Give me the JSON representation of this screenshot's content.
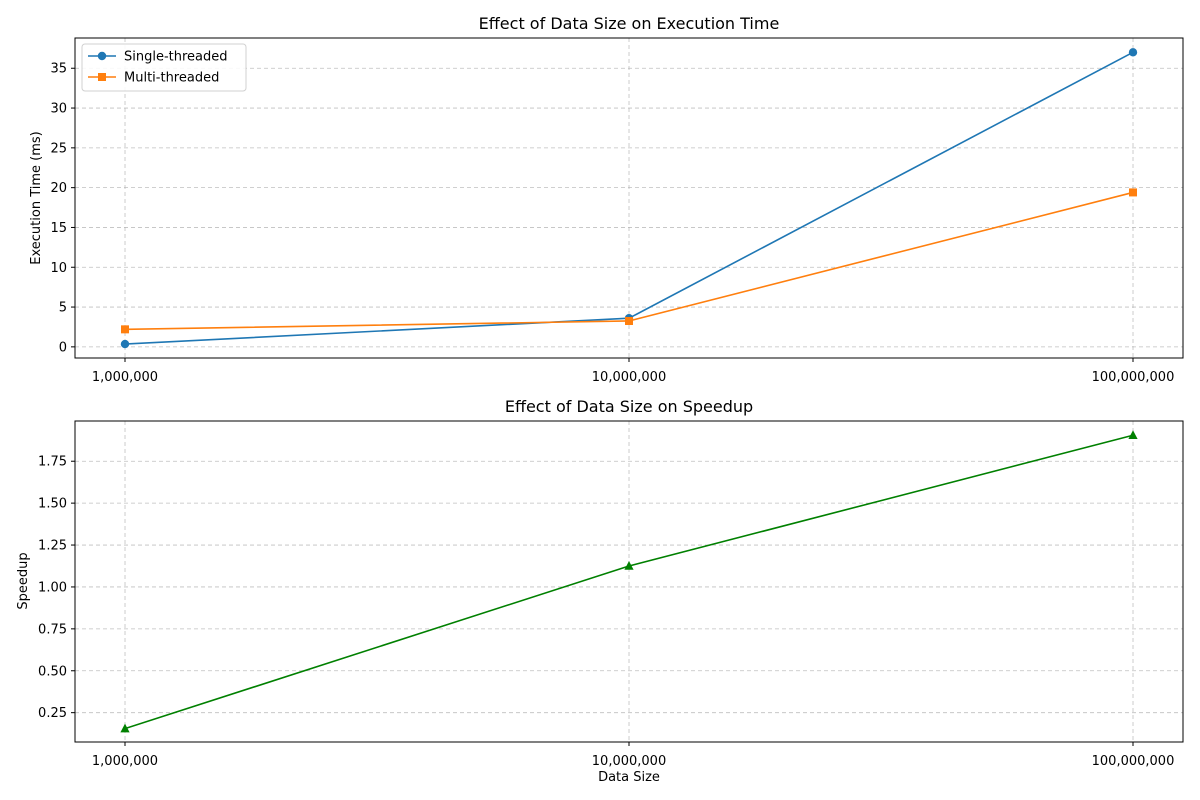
{
  "chart_data": [
    {
      "type": "line",
      "title": "Effect of Data Size on Execution Time",
      "xlabel": "",
      "ylabel": "Execution Time (ms)",
      "xscale": "log",
      "x": [
        1000000,
        10000000,
        100000000
      ],
      "x_tick_labels": [
        "1,000,000",
        "10,000,000",
        "100,000,000"
      ],
      "ylim": [
        -1.4,
        38.8
      ],
      "y_ticks": [
        0,
        5,
        10,
        15,
        20,
        25,
        30,
        35
      ],
      "grid": true,
      "legend_position": "top-left",
      "series": [
        {
          "name": "Single-threaded",
          "values": [
            0.35,
            3.6,
            37.0
          ],
          "color": "#1f77b4",
          "marker": "circle"
        },
        {
          "name": "Multi-threaded",
          "values": [
            2.2,
            3.25,
            19.4
          ],
          "color": "#ff7f0e",
          "marker": "square"
        }
      ]
    },
    {
      "type": "line",
      "title": "Effect of Data Size on Speedup",
      "xlabel": "Data Size",
      "ylabel": "Speedup",
      "xscale": "log",
      "x": [
        1000000,
        10000000,
        100000000
      ],
      "x_tick_labels": [
        "1,000,000",
        "10,000,000",
        "100,000,000"
      ],
      "ylim": [
        0.075,
        1.99
      ],
      "y_ticks": [
        0.25,
        0.5,
        0.75,
        1.0,
        1.25,
        1.5,
        1.75
      ],
      "y_tick_labels": [
        "0.25",
        "0.50",
        "0.75",
        "1.00",
        "1.25",
        "1.50",
        "1.75"
      ],
      "grid": true,
      "legend_position": "none",
      "series": [
        {
          "name": "",
          "values": [
            0.155,
            1.125,
            1.905
          ],
          "color": "#008000",
          "marker": "triangle"
        }
      ]
    }
  ]
}
